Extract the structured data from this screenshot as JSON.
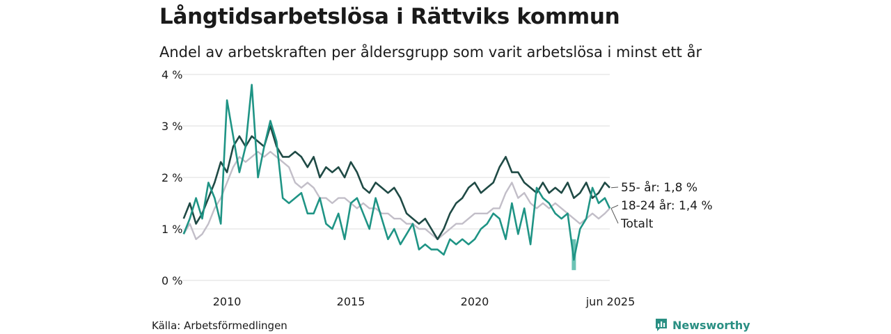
{
  "title": "Långtidsarbetslösa i Rättviks kommun",
  "subtitle": "Andel av arbetskraften per åldersgrupp som varit arbetslösa i minst ett år",
  "source": "Källa: Arbetsförmedlingen",
  "brand": {
    "name": "Newsworthy",
    "icon": "bar-chart-icon"
  },
  "chart_data": {
    "type": "line",
    "ylim": [
      0,
      4
    ],
    "yticks": [
      0,
      1,
      2,
      3,
      4
    ],
    "ytick_labels": [
      "0 %",
      "1 %",
      "2 %",
      "3 %",
      "4 %"
    ],
    "xlim": [
      2008.2,
      2025.45
    ],
    "xticks": [
      2010,
      2015,
      2020
    ],
    "xtick_labels": [
      "2010",
      "2015",
      "2020"
    ],
    "xtick_last_label": "jun 2025",
    "grid": true,
    "colors": {
      "total": "#c2bec8",
      "age55": "#1f4a45",
      "age1824": "#1f9485",
      "band": "#6cc3b5",
      "grid": "#dcdcdc"
    },
    "series": [
      {
        "key": "total",
        "name": "Totalt",
        "end_label": "Totalt",
        "x": [
          2008.25,
          2008.5,
          2008.75,
          2009.0,
          2009.25,
          2009.5,
          2009.75,
          2010.0,
          2010.25,
          2010.5,
          2010.75,
          2011.0,
          2011.25,
          2011.5,
          2011.75,
          2012.0,
          2012.25,
          2012.5,
          2012.75,
          2013.0,
          2013.25,
          2013.5,
          2013.75,
          2014.0,
          2014.25,
          2014.5,
          2014.75,
          2015.0,
          2015.25,
          2015.5,
          2015.75,
          2016.0,
          2016.25,
          2016.5,
          2016.75,
          2017.0,
          2017.25,
          2017.5,
          2017.75,
          2018.0,
          2018.25,
          2018.5,
          2018.75,
          2019.0,
          2019.25,
          2019.5,
          2019.75,
          2020.0,
          2020.25,
          2020.5,
          2020.75,
          2021.0,
          2021.25,
          2021.5,
          2021.75,
          2022.0,
          2022.25,
          2022.5,
          2022.75,
          2023.0,
          2023.25,
          2023.5,
          2023.75,
          2024.0,
          2024.25,
          2024.5,
          2024.75,
          2025.0,
          2025.25,
          2025.45
        ],
        "values": [
          0.9,
          1.1,
          0.8,
          0.9,
          1.1,
          1.4,
          1.6,
          1.9,
          2.2,
          2.4,
          2.3,
          2.4,
          2.5,
          2.4,
          2.5,
          2.4,
          2.3,
          2.2,
          1.9,
          1.8,
          1.9,
          1.8,
          1.6,
          1.6,
          1.5,
          1.6,
          1.6,
          1.5,
          1.4,
          1.5,
          1.4,
          1.4,
          1.3,
          1.3,
          1.2,
          1.2,
          1.1,
          1.1,
          1.0,
          1.0,
          0.9,
          0.8,
          0.9,
          1.0,
          1.1,
          1.1,
          1.2,
          1.3,
          1.3,
          1.3,
          1.4,
          1.4,
          1.7,
          1.9,
          1.6,
          1.7,
          1.5,
          1.4,
          1.5,
          1.4,
          1.5,
          1.4,
          1.3,
          1.2,
          1.1,
          1.2,
          1.3,
          1.2,
          1.3,
          1.4
        ]
      },
      {
        "key": "age55",
        "name": "55- år",
        "end_label": "55- år: 1,8 %",
        "x": [
          2008.25,
          2008.5,
          2008.75,
          2009.0,
          2009.25,
          2009.5,
          2009.75,
          2010.0,
          2010.25,
          2010.5,
          2010.75,
          2011.0,
          2011.25,
          2011.5,
          2011.75,
          2012.0,
          2012.25,
          2012.5,
          2012.75,
          2013.0,
          2013.25,
          2013.5,
          2013.75,
          2014.0,
          2014.25,
          2014.5,
          2014.75,
          2015.0,
          2015.25,
          2015.5,
          2015.75,
          2016.0,
          2016.25,
          2016.5,
          2016.75,
          2017.0,
          2017.25,
          2017.5,
          2017.75,
          2018.0,
          2018.25,
          2018.5,
          2018.75,
          2019.0,
          2019.25,
          2019.5,
          2019.75,
          2020.0,
          2020.25,
          2020.5,
          2020.75,
          2021.0,
          2021.25,
          2021.5,
          2021.75,
          2022.0,
          2022.25,
          2022.5,
          2022.75,
          2023.0,
          2023.25,
          2023.5,
          2023.75,
          2024.0,
          2024.25,
          2024.5,
          2024.75,
          2025.0,
          2025.25,
          2025.45
        ],
        "values": [
          1.2,
          1.5,
          1.1,
          1.3,
          1.6,
          1.9,
          2.3,
          2.1,
          2.6,
          2.8,
          2.6,
          2.8,
          2.7,
          2.6,
          3.0,
          2.6,
          2.4,
          2.4,
          2.5,
          2.4,
          2.2,
          2.4,
          2.0,
          2.2,
          2.1,
          2.2,
          2.0,
          2.3,
          2.1,
          1.8,
          1.7,
          1.9,
          1.8,
          1.7,
          1.8,
          1.6,
          1.3,
          1.2,
          1.1,
          1.2,
          1.0,
          0.8,
          1.0,
          1.3,
          1.5,
          1.6,
          1.8,
          1.9,
          1.7,
          1.8,
          1.9,
          2.2,
          2.4,
          2.1,
          2.1,
          1.9,
          1.8,
          1.7,
          1.9,
          1.7,
          1.8,
          1.7,
          1.9,
          1.6,
          1.7,
          1.9,
          1.6,
          1.7,
          1.9,
          1.8
        ]
      },
      {
        "key": "age1824",
        "name": "18-24 år",
        "end_label": "18-24 år: 1,4 %",
        "x": [
          2008.25,
          2008.5,
          2008.75,
          2009.0,
          2009.25,
          2009.5,
          2009.75,
          2010.0,
          2010.25,
          2010.5,
          2010.75,
          2011.0,
          2011.25,
          2011.5,
          2011.75,
          2012.0,
          2012.25,
          2012.5,
          2012.75,
          2013.0,
          2013.25,
          2013.5,
          2013.75,
          2014.0,
          2014.25,
          2014.5,
          2014.75,
          2015.0,
          2015.25,
          2015.5,
          2015.75,
          2016.0,
          2016.25,
          2016.5,
          2016.75,
          2017.0,
          2017.25,
          2017.5,
          2017.75,
          2018.0,
          2018.25,
          2018.5,
          2018.75,
          2019.0,
          2019.25,
          2019.5,
          2019.75,
          2020.0,
          2020.25,
          2020.5,
          2020.75,
          2021.0,
          2021.25,
          2021.5,
          2021.75,
          2022.0,
          2022.25,
          2022.5,
          2022.75,
          2023.0,
          2023.25,
          2023.5,
          2023.75,
          2024.0,
          2024.25,
          2024.5,
          2024.75,
          2025.0,
          2025.25,
          2025.45
        ],
        "values": [
          0.9,
          1.2,
          1.6,
          1.2,
          1.9,
          1.6,
          1.1,
          3.5,
          2.8,
          2.1,
          2.6,
          3.8,
          2.0,
          2.6,
          3.1,
          2.7,
          1.6,
          1.5,
          1.6,
          1.7,
          1.3,
          1.3,
          1.6,
          1.1,
          1.0,
          1.3,
          0.8,
          1.5,
          1.6,
          1.3,
          1.0,
          1.6,
          1.2,
          0.8,
          1.0,
          0.7,
          0.9,
          1.1,
          0.6,
          0.7,
          0.6,
          0.6,
          0.5,
          0.8,
          0.7,
          0.8,
          0.7,
          0.8,
          1.0,
          1.1,
          1.3,
          1.2,
          0.8,
          1.5,
          0.9,
          1.4,
          0.7,
          1.8,
          1.6,
          1.5,
          1.3,
          1.2,
          1.3,
          0.4,
          1.0,
          1.2,
          1.8,
          1.5,
          1.6,
          1.4
        ]
      }
    ],
    "band": {
      "key": "age1824",
      "x": [
        2024.0,
        2024.0
      ],
      "low": [
        0.2,
        0.2
      ],
      "high": [
        0.8,
        0.8
      ]
    }
  }
}
